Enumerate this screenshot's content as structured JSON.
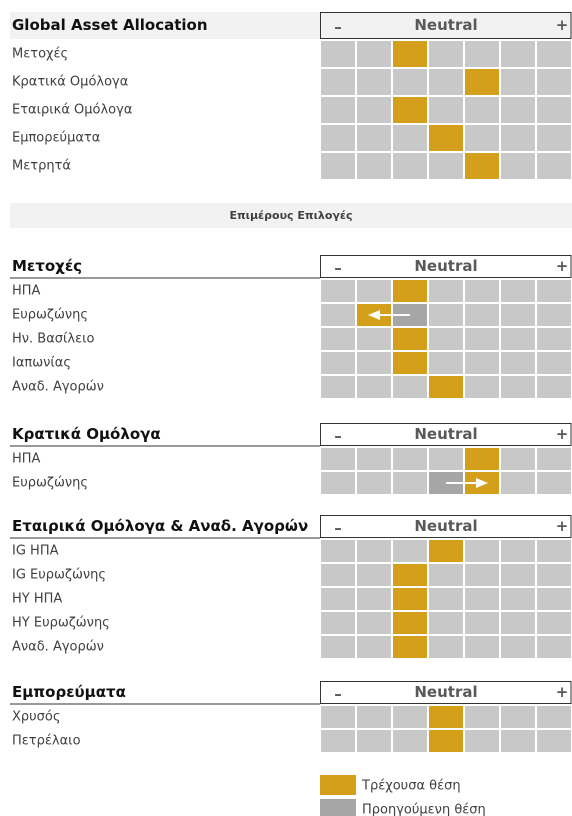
{
  "scale": {
    "minus": "–",
    "neutral": "Neutral",
    "plus": "+"
  },
  "subheading": "Επιμέρους Επιλογές",
  "sections": [
    {
      "title": "Global Asset Allocation",
      "rows": [
        {
          "label": "Μετοχές",
          "current": 2
        },
        {
          "label": "Κρατικά Ομόλογα",
          "current": 4
        },
        {
          "label": "Εταιρικά Ομόλογα",
          "current": 2
        },
        {
          "label": "Εμπορεύματα",
          "current": 3
        },
        {
          "label": "Μετρητά",
          "current": 4
        }
      ]
    },
    {
      "title": "Μετοχές",
      "rows": [
        {
          "label": "ΗΠΑ",
          "current": 2
        },
        {
          "label": "Ευρωζώνης",
          "current": 1,
          "previous": 2
        },
        {
          "label": "Ην. Βασίλειο",
          "current": 2
        },
        {
          "label": "Ιαπωνίας",
          "current": 2
        },
        {
          "label": "Αναδ. Αγορών",
          "current": 3
        }
      ]
    },
    {
      "title": "Κρατικά Ομόλογα",
      "rows": [
        {
          "label": "ΗΠΑ",
          "current": 4
        },
        {
          "label": "Ευρωζώνης",
          "current": 4,
          "previous": 3
        }
      ]
    },
    {
      "title": "Εταιρικά Ομόλογα & Αναδ. Αγορών",
      "rows": [
        {
          "label": "IG ΗΠΑ",
          "current": 3
        },
        {
          "label": "IG Ευρωζώνης",
          "current": 2
        },
        {
          "label": "ΗΥ ΗΠΑ",
          "current": 2
        },
        {
          "label": "ΗΥ Ευρωζώνης",
          "current": 2
        },
        {
          "label": "Αναδ. Αγορών",
          "current": 2
        }
      ]
    },
    {
      "title": "Εμπορεύματα",
      "rows": [
        {
          "label": "Χρυσός",
          "current": 3
        },
        {
          "label": "Πετρέλαιο",
          "current": 3
        }
      ]
    }
  ],
  "legend": {
    "current": "Τρέχουσα θέση",
    "previous": "Προηγούμενη θέση"
  }
}
